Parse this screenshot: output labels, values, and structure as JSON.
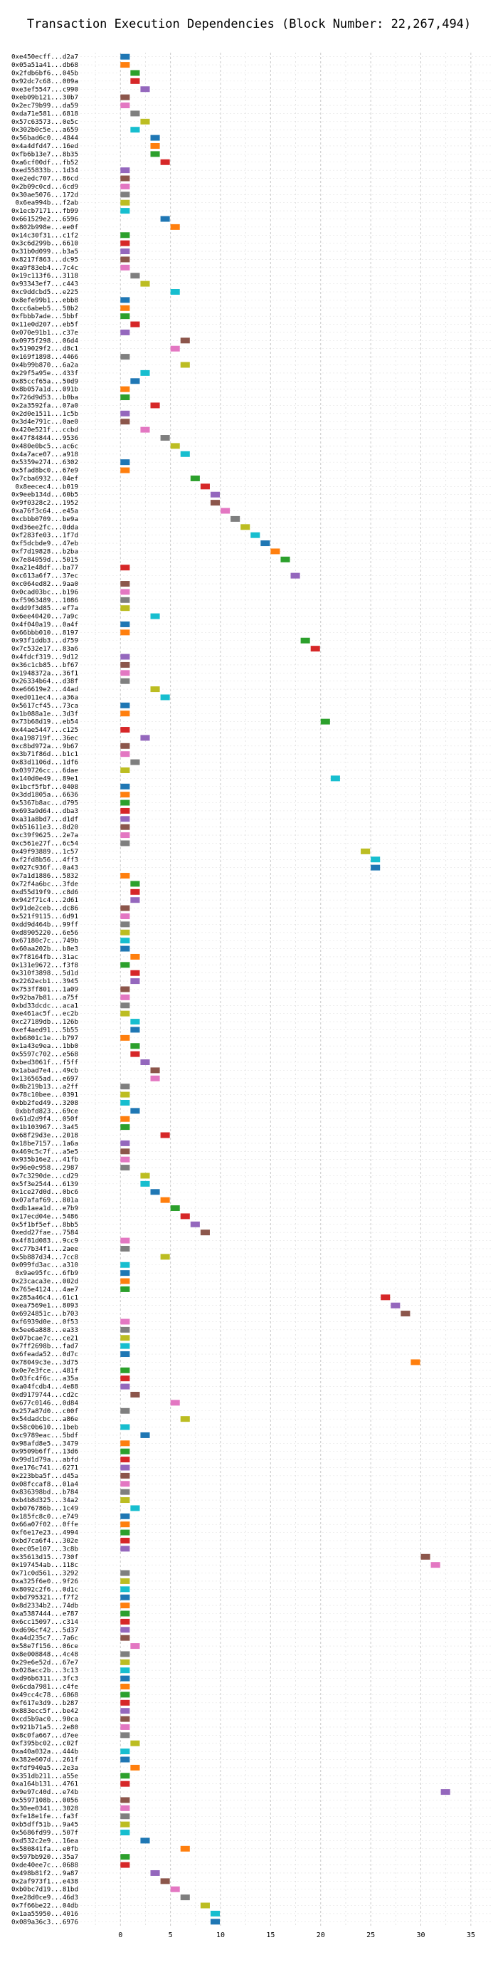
{
  "chart_data": {
    "type": "gantt",
    "title": "Transaction Execution Dependencies (Block Number: 22,267,494)",
    "xlabel": "",
    "ylabel": "",
    "xlim": [
      -4,
      37
    ],
    "xticks": [
      0,
      5,
      10,
      15,
      20,
      25,
      30,
      35
    ],
    "grid": true,
    "palette": [
      "#1f77b4",
      "#ff7f0e",
      "#2ca02c",
      "#d62728",
      "#9467bd",
      "#8c564b",
      "#e377c2",
      "#7f7f7f",
      "#bcbd22",
      "#17becf"
    ],
    "transactions": [
      "0xe450ecff...d2a7",
      "0x05a51a41...db68",
      "0x2fdb6bf6...045b",
      "0x92dc7c68...009a",
      "0xe3ef5547...c990",
      "0xeb09b121...30b7",
      "0x2ec79b99...da59",
      "0xda71e581...6818",
      "0x57c63573...0e5c",
      "0x302b0c5e...a659",
      "0x56bad6c0...4844",
      "0x4a4dfd47...16ed",
      "0xfb6b13e7...8b35",
      "0xa6cf00df...fb52",
      "0xed55833b...1d34",
      "0xe2edc707...86cd",
      "0x2b09c0cd...6cd9",
      "0x30ae5076...172d",
      "0x6ea994b...f2ab",
      "0x1ecb7171...fb99",
      "0x661529e2...6596",
      "0x802b998e...ee0f",
      "0x14c30f31...c1f2",
      "0x3c6d299b...6610",
      "0x31b0d099...b3a5",
      "0x8217f863...dc95",
      "0xa9f83eb4...7c4c",
      "0x19c113f6...3118",
      "0x93343ef7...c443",
      "0xc9ddcbd5...e225",
      "0x8efe99b1...ebb8",
      "0xcc6abeb5...50b2",
      "0xfbbb7ade...5bbf",
      "0x11e0d207...eb5f",
      "0x070e91b1...c37e",
      "0x0975f298...06d4",
      "0x519029f2...d8c1",
      "0x169f1898...4466",
      "0x4b99b870...6a2a",
      "0x29f5a95e...433f",
      "0x85ccf65a...50d9",
      "0x8b057a1d...091b",
      "0x726d9d53...b0ba",
      "0x2a3592fa...07a0",
      "0x2d0e1511...1c5b",
      "0x3d4e791c...0ae0",
      "0x420e521f...ccbd",
      "0x47f84844...9536",
      "0x480e0bc5...ac6c",
      "0x4a7ace07...a918",
      "0x5359e274...6302",
      "0x5fad8bc0...67e9",
      "0x7cba6932...04ef",
      "0x8eecec4...b019",
      "0x9eeb134d...60b5",
      "0x9f0328c2...1952",
      "0xa76f3c64...e45a",
      "0xcbbb0709...be9a",
      "0xd36ee2fc...0dda",
      "0xf283fe03...1f7d",
      "0xf5dcbde9...47eb",
      "0xf7d19828...b2ba",
      "0x7e84059d...5015",
      "0xa21e48df...ba77",
      "0xc613a6f7...37ec",
      "0xc064ed82...9aa0",
      "0x0cad03bc...b196",
      "0xf5963489...1086",
      "0xdd9f3d85...ef7a",
      "0x6ee40420...7a9c",
      "0x4f040a19...0a4f",
      "0x66bbb010...8197",
      "0x93f1ddb3...d759",
      "0x7c532e17...83a6",
      "0x4fdcf319...9d12",
      "0x36c1cb85...bf67",
      "0x1948372a...36f1",
      "0x26334b64...d38f",
      "0xe66619e2...44ad",
      "0xed011ec4...a36a",
      "0x5617cf45...73ca",
      "0x1b088a1e...3d3f",
      "0x73b68d19...eb54",
      "0x44ae5447...c125",
      "0xa198719f...36ec",
      "0xc8bd972a...9b67",
      "0x3b71f86d...b1c1",
      "0x83d1106d...1df6",
      "0x039726cc...6dae",
      "0x140d0e49...89e1",
      "0x1bcf5fbf...0408",
      "0x3dd1805a...6636",
      "0x5367b8ac...d795",
      "0x693a9d64...dba3",
      "0xa31a8bd7...d1df",
      "0xb51611e3...8d20",
      "0xc39f9625...2e7a",
      "0xc561e27f...6c54",
      "0x49f93889...1c57",
      "0xf2fd8b56...4ff3",
      "0x027c936f...0a43",
      "0x7a1d1886...5832",
      "0x72f4a6bc...3fde",
      "0xd55d19f9...c8d6",
      "0x942f71c4...2d61",
      "0x91de2ceb...dc86",
      "0x521f9115...6d91",
      "0xdd9d464b...99ff",
      "0xd8905220...6e56",
      "0x67180c7c...749b",
      "0x60aa202b...b8e3",
      "0x7f8164fb...31ac",
      "0x131e9672...f3f8",
      "0x310f3898...5d1d",
      "0x2262ecb1...3945",
      "0x753ff801...1a09",
      "0x92ba7b81...a75f",
      "0xbd33dcdc...aca1",
      "0xe461ac5f...ec2b",
      "0xc27189db...126b",
      "0xef4aed91...5b55",
      "0xb6801c1e...b797",
      "0x1a43e9ea...1bb0",
      "0x5597c702...e568",
      "0xbed3061f...f5ff",
      "0x1abad7e4...49cb",
      "0x136565ad...e697",
      "0x8b219b13...a2ff",
      "0x78c10bee...0391",
      "0xbb2fed49...3208",
      "0xbbfd823...69ce",
      "0x61d2d9f4...050f",
      "0x1b103967...3a45",
      "0x68f29d3e...2018",
      "0x18be7157...1a6a",
      "0x469c5c7f...a5e5",
      "0x935b16e2...41fb",
      "0x96e0c958...2987",
      "0x7c3290de...cd29",
      "0x5f3e2544...6139",
      "0x1ce27d0d...0bc6",
      "0x07afaf69...801a",
      "0xdb1aea1d...e7b9",
      "0x17ecd04e...5486",
      "0x5f1bf5ef...8bb5",
      "0xedd27fae...7584",
      "0x4f81d083...9cc9",
      "0xc77b34f1...2aee",
      "0x5b887d34...7cc8",
      "0x099fd3ac...a310",
      "0x9ae95fc...6fb9",
      "0x23caca3e...002d",
      "0x765e4124...4ae7",
      "0x285a46c4...61c1",
      "0xea7569e1...8093",
      "0x6924851c...b703",
      "0xf6939d0e...0f53",
      "0x5ee6a888...ea33",
      "0x07bcae7c...ce21",
      "0x7ff2698b...fad7",
      "0x6feada52...0d7c",
      "0x78049c3e...3d75",
      "0x0e7e3fce...481f",
      "0x03fc4f6c...a35a",
      "0xa04fcdb4...4e88",
      "0xd9179744...cd2c",
      "0x677c0146...0d84",
      "0x257a87d0...c00f",
      "0x54dadcbc...a86e",
      "0x58c0b610...1beb",
      "0xc9789eac...5bdf",
      "0x98afd8e5...3479",
      "0x9509b6ff...13d6",
      "0x99d1d79a...abfd",
      "0xe176c741...6271",
      "0x223bba5f...d45a",
      "0x08fccaf8...01a4",
      "0x836398bd...b784",
      "0xb4b8d325...34a2",
      "0xb076786b...1c49",
      "0x185fc8c0...e749",
      "0x66a07f02...0ffe",
      "0xf6e17e23...4994",
      "0xbd7ca6f4...302e",
      "0xec05e107...3c8b",
      "0x35613d15...730f",
      "0x197454ab...118c",
      "0x71c0d561...3292",
      "0xa325f6e0...9f26",
      "0x8092c2f6...0d1c",
      "0xbd795321...f7f2",
      "0x8d2334b2...74db",
      "0xa5387444...e787",
      "0x6cc15097...c314",
      "0xd696cf42...5d37",
      "0xa4d235c7...7a6c",
      "0x58e7f156...06ce",
      "0x8e008848...4c48",
      "0x29e6e52d...67e7",
      "0x028acc2b...3c13",
      "0xd96b6311...3fc3",
      "0x6cda7981...c4fe",
      "0x49cc4c78...6868",
      "0xf617e3d9...b287",
      "0x883ecc5f...be42",
      "0xcd5b9ac0...90ca",
      "0x921b71a5...2e80",
      "0x8c0fa667...d7ee",
      "0xf395bc02...c02f",
      "0xa40a032a...444b",
      "0x382e607d...261f",
      "0xfdf940a5...2e3a",
      "0x351db211...a55e",
      "0xa164b131...4761",
      "0x9e97c40d...e74b",
      "0x5597108b...0056",
      "0x30ee0341...3028",
      "0xfe18e1fe...fa3f",
      "0xb5dff51b...9a45",
      "0x5686fd99...507f",
      "0xd532c2e9...16ea",
      "0x580841fa...e0fb",
      "0x597bb920...35a7",
      "0xde40ee7c...0688",
      "0x498b81f2...9a87",
      "0x2af973f1...e438",
      "0xb0bc7d19...81bd",
      "0xe28d0ce9...46d3",
      "0x7f66be22...04db",
      "0x1aa55950...4016",
      "0x089a36c3...6976"
    ],
    "exec_start": [
      0,
      0,
      1,
      1,
      2,
      0,
      0,
      1,
      2,
      1,
      3,
      3,
      3,
      4,
      0,
      0,
      0,
      0,
      0,
      0,
      4,
      5,
      0,
      0,
      0,
      0,
      0,
      1,
      2,
      5,
      0,
      0,
      0,
      1,
      0,
      6,
      5,
      0,
      6,
      2,
      1,
      0,
      0,
      3,
      0,
      0,
      2,
      4,
      5,
      6,
      0,
      0,
      7,
      8,
      9,
      9,
      10,
      11,
      12,
      13,
      14,
      15,
      16,
      0,
      17,
      0,
      0,
      0,
      0,
      3,
      0,
      0,
      18,
      19,
      0,
      0,
      0,
      0,
      3,
      4,
      0,
      0,
      20,
      0,
      2,
      0,
      0,
      1,
      0,
      21,
      0,
      0,
      0,
      0,
      0,
      0,
      0,
      0,
      24,
      25,
      25,
      0,
      1,
      1,
      1,
      0,
      0,
      0,
      0,
      0,
      0,
      1,
      0,
      1,
      1,
      0,
      0,
      0,
      0,
      1,
      1,
      0,
      1,
      1,
      2,
      3,
      3,
      0,
      0,
      0,
      1,
      0,
      0,
      4,
      0,
      0,
      0,
      0,
      2,
      2,
      3,
      4,
      5,
      6,
      7,
      8,
      0,
      0,
      4,
      0,
      0,
      0,
      0,
      26,
      27,
      28,
      0,
      0,
      0,
      0,
      0,
      29,
      0,
      0,
      0,
      1,
      5,
      0,
      6,
      0,
      2,
      0,
      0,
      0,
      0,
      0,
      0,
      0,
      0,
      1,
      0,
      0,
      0,
      0,
      0,
      30,
      31,
      0,
      0,
      0,
      0,
      0,
      0,
      0,
      0,
      0,
      1,
      0,
      0,
      0,
      0,
      0,
      0,
      0,
      0,
      0,
      0,
      0,
      1,
      0,
      0,
      1,
      0,
      0,
      32,
      0,
      0,
      0,
      0,
      0,
      2,
      6,
      0,
      0,
      3,
      4,
      5,
      6,
      8,
      9,
      9
    ],
    "exec_duration": [
      1,
      1,
      1,
      1,
      1,
      1,
      1,
      1,
      1,
      1,
      1,
      1,
      1,
      1,
      1,
      1,
      1,
      1,
      1,
      1,
      1,
      1,
      1,
      1,
      1,
      1,
      1,
      1,
      1,
      1,
      1,
      1,
      1,
      1,
      1,
      1,
      1,
      1,
      1,
      1,
      1,
      1,
      1,
      1,
      1,
      1,
      1,
      1,
      1,
      1,
      1,
      1,
      1,
      1,
      1,
      1,
      1,
      1,
      1,
      1,
      1,
      1,
      1,
      1,
      1,
      1,
      1,
      1,
      1,
      1,
      1,
      1,
      1,
      1,
      1,
      1,
      1,
      1,
      1,
      1,
      1,
      1,
      1,
      1,
      1,
      1,
      1,
      1,
      1,
      1,
      1,
      1,
      1,
      1,
      1,
      1,
      1,
      1,
      1,
      1,
      1,
      1,
      1,
      1,
      1,
      1,
      1,
      1,
      1,
      1,
      1,
      1,
      1,
      1,
      1,
      1,
      1,
      1,
      1,
      1,
      1,
      1,
      1,
      1,
      1,
      1,
      1,
      1,
      1,
      1,
      1,
      1,
      1,
      1,
      1,
      1,
      1,
      1,
      1,
      1,
      1,
      1,
      1,
      1,
      1,
      1,
      1,
      1,
      1,
      1,
      1,
      1,
      1,
      1,
      1,
      1,
      1,
      1,
      1,
      1,
      1,
      1,
      1,
      1,
      1,
      1,
      1,
      1,
      1,
      1,
      1,
      1,
      1,
      1,
      1,
      1,
      1,
      1,
      1,
      1,
      1,
      1,
      1,
      1,
      1,
      1,
      1,
      1,
      1,
      1,
      1,
      1,
      1,
      1,
      1,
      1,
      1,
      1,
      1,
      1,
      1,
      1,
      1,
      1,
      1,
      1,
      1,
      1,
      1,
      1,
      1,
      1,
      1,
      1,
      1,
      1,
      1,
      1,
      1,
      1,
      1,
      1,
      1,
      1,
      1,
      1,
      1,
      1,
      1,
      1,
      1
    ]
  }
}
